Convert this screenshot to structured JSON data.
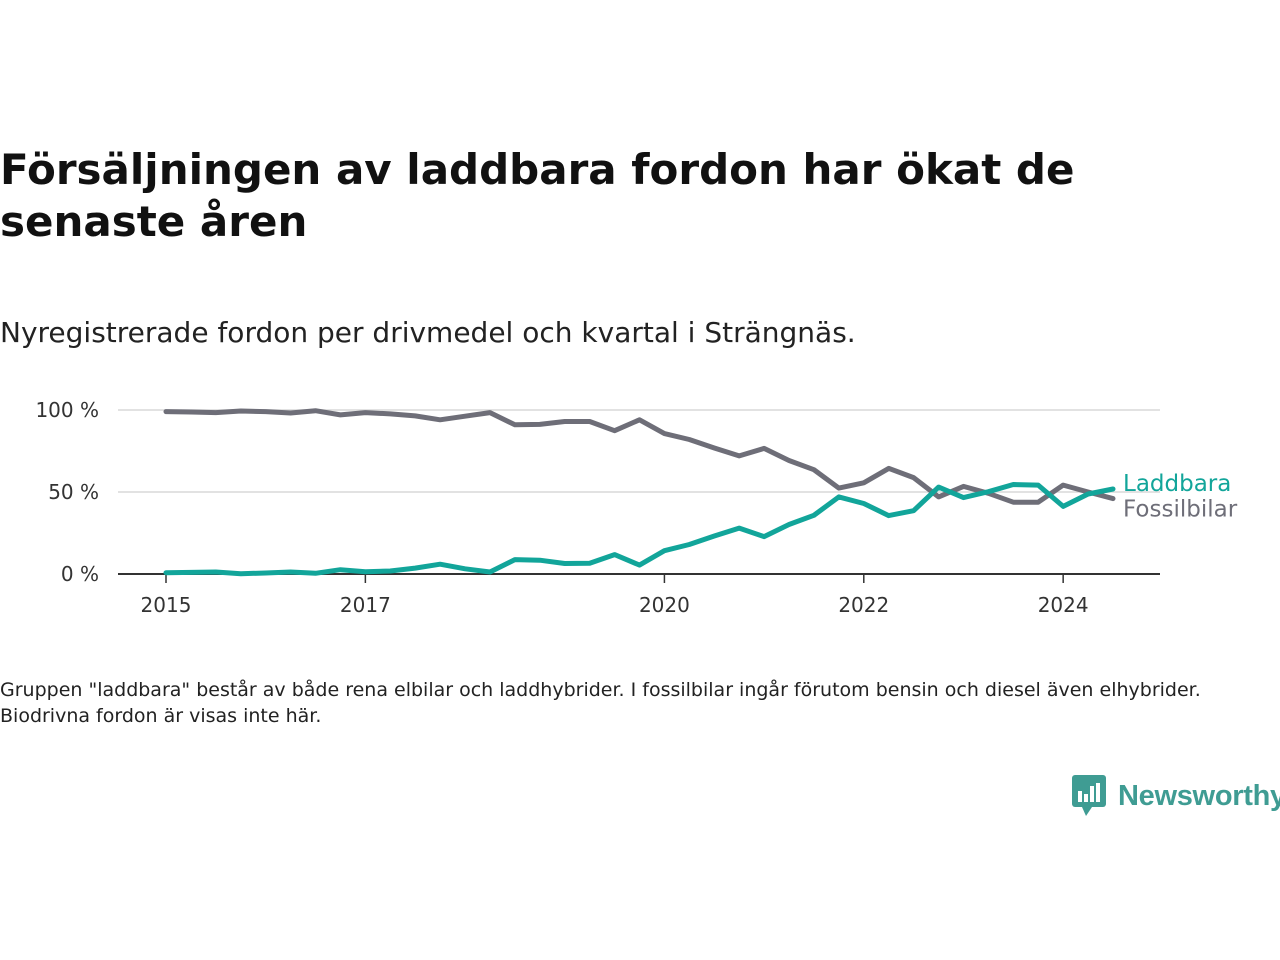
{
  "title": "Försäljningen av laddbara fordon har ökat de senaste åren",
  "subtitle": "Nyregistrerade fordon per drivmedel och kvartal i Strängnäs.",
  "note": "Gruppen \"laddbara\" består av både rena elbilar och laddhybrider. I fossilbilar ingår förutom bensin och diesel även elhybrider. Biodrivna fordon är visas inte här.",
  "brand": {
    "name": "Newsworthy",
    "icon": "bar-chart-speech-bubble-icon",
    "color": "#3f9c93"
  },
  "chart_data": {
    "type": "line",
    "x": [
      "2015-Q1",
      "2015-Q2",
      "2015-Q3",
      "2015-Q4",
      "2016-Q1",
      "2016-Q2",
      "2016-Q3",
      "2016-Q4",
      "2017-Q1",
      "2017-Q2",
      "2017-Q3",
      "2017-Q4",
      "2018-Q1",
      "2018-Q2",
      "2018-Q3",
      "2018-Q4",
      "2019-Q1",
      "2019-Q2",
      "2019-Q3",
      "2019-Q4",
      "2020-Q1",
      "2020-Q2",
      "2020-Q3",
      "2020-Q4",
      "2021-Q1",
      "2021-Q2",
      "2021-Q3",
      "2021-Q4",
      "2022-Q1",
      "2022-Q2",
      "2022-Q3",
      "2022-Q4",
      "2023-Q1",
      "2023-Q2",
      "2023-Q3",
      "2023-Q4",
      "2024-Q1",
      "2024-Q2",
      "2024-Q3"
    ],
    "series": [
      {
        "name": "Fossilbilar",
        "color": "#6e6e78",
        "values": [
          99,
          98.8,
          98.4,
          99.4,
          99,
          98.2,
          99.6,
          97,
          98.4,
          97.6,
          96.4,
          94,
          96.2,
          98.4,
          91,
          91.2,
          93,
          93,
          87.4,
          94,
          85.6,
          82,
          76.8,
          72,
          76.6,
          69.2,
          63.6,
          52.4,
          55.6,
          64.4,
          58.8,
          47,
          53.4,
          49.2,
          43.8,
          43.8,
          54.2,
          50,
          46
        ]
      },
      {
        "name": "Laddbara",
        "color": "#12a59a",
        "values": [
          0.8,
          1,
          1.2,
          0.2,
          0.6,
          1.2,
          0.4,
          2.6,
          1.4,
          1.8,
          3.6,
          6,
          3.2,
          1.2,
          8.8,
          8.4,
          6.4,
          6.6,
          11.8,
          5.4,
          14.2,
          18,
          23.2,
          28,
          22.8,
          30.2,
          35.8,
          47,
          43,
          35.6,
          38.6,
          53,
          46.6,
          50.2,
          54.6,
          54.2,
          41.2,
          48.8,
          51.8
        ]
      }
    ],
    "x_ticks": [
      {
        "label": "2015",
        "at": 0
      },
      {
        "label": "2017",
        "at": 8
      },
      {
        "label": "2020",
        "at": 20
      },
      {
        "label": "2022",
        "at": 28
      },
      {
        "label": "2024",
        "at": 36
      }
    ],
    "y_ticks": [
      {
        "label": "0 %",
        "value": 0
      },
      {
        "label": "50 %",
        "value": 50
      },
      {
        "label": "100 %",
        "value": 100
      }
    ],
    "ylim": [
      0,
      100
    ],
    "grid": true,
    "legend": "direct labels at line ends"
  }
}
